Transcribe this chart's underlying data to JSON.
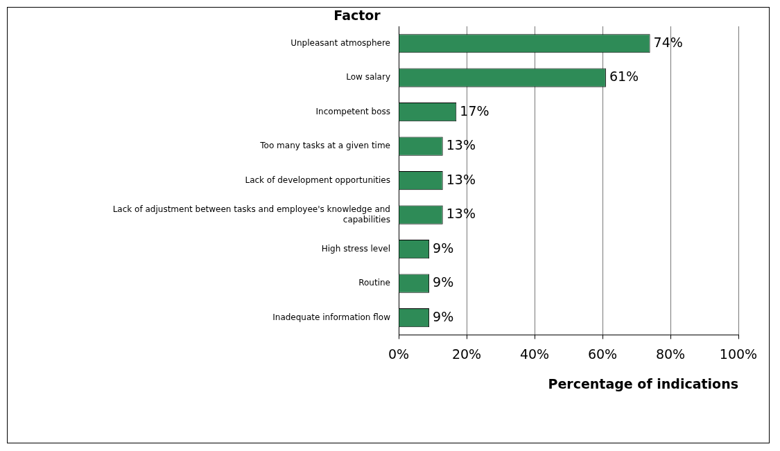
{
  "chart_data": {
    "type": "bar",
    "orientation": "horizontal",
    "ylabel": "Factor",
    "xlabel": "Percentage of indications",
    "categories": [
      "Unpleasant atmosphere",
      "Low salary",
      "Incompetent boss",
      "Too many tasks at a given time",
      "Lack of development opportunities",
      "Lack of adjustment between tasks and employee's knowledge and capabilities",
      "High stress level",
      "Routine",
      "Inadequate information flow"
    ],
    "values": [
      74,
      61,
      17,
      13,
      13,
      13,
      9,
      9,
      9
    ],
    "value_labels": [
      "74%",
      "61%",
      "17%",
      "13%",
      "13%",
      "13%",
      "9%",
      "9%",
      "9%"
    ],
    "color": "#2e8b57",
    "xlim": [
      0,
      100
    ],
    "xticks": [
      {
        "value": 0,
        "label": "0%"
      },
      {
        "value": 20,
        "label": "20%"
      },
      {
        "value": 40,
        "label": "40%"
      },
      {
        "value": 60,
        "label": "60%"
      },
      {
        "value": 80,
        "label": "80%"
      },
      {
        "value": 100,
        "label": "100%"
      }
    ],
    "grid": "x",
    "legend": false
  }
}
